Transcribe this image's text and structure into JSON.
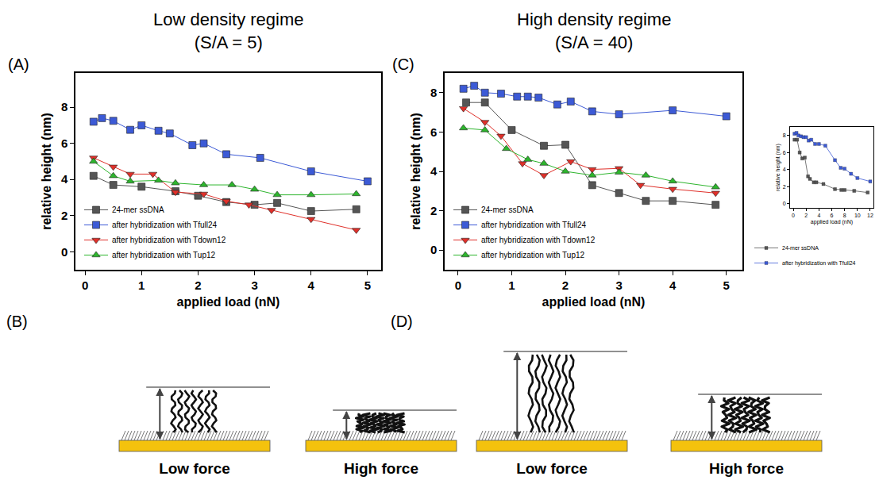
{
  "chart_data": [
    {
      "type": "line",
      "panel_label": "(A)",
      "title": "Low density regime (S/A = 5)",
      "x_label": "applied load (nN)",
      "y_label": "relative height (nm)",
      "xlim": [
        -0.17,
        5.24
      ],
      "ylim": [
        -1.0,
        9.9
      ],
      "xticks": [
        0,
        1,
        2,
        3,
        4,
        5
      ],
      "yticks": [
        0,
        2,
        4,
        6,
        8
      ],
      "grid": false,
      "legend": "lower left",
      "series": [
        {
          "name": "24-mer ssDNA",
          "color": "#555555",
          "marker": "square",
          "x": [
            0.15,
            0.5,
            1.0,
            1.6,
            2.0,
            2.5,
            3.0,
            3.4,
            4.0,
            4.8
          ],
          "values": [
            4.2,
            3.7,
            3.6,
            3.35,
            3.1,
            2.75,
            2.6,
            2.7,
            2.25,
            2.35
          ]
        },
        {
          "name": "after hybridization with Tfull24",
          "color": "#3c5ad6",
          "marker": "square",
          "x": [
            0.15,
            0.3,
            0.5,
            0.8,
            1.0,
            1.3,
            1.5,
            1.9,
            2.1,
            2.5,
            3.1,
            4.0,
            5.0
          ],
          "values": [
            7.2,
            7.4,
            7.25,
            6.75,
            7.0,
            6.7,
            6.55,
            5.9,
            6.0,
            5.4,
            5.2,
            4.45,
            3.9
          ]
        },
        {
          "name": "after hybridization with Tdown12",
          "color": "#e0302a",
          "marker": "triangle-down",
          "x": [
            0.15,
            0.5,
            0.8,
            1.2,
            1.6,
            2.1,
            2.5,
            2.9,
            3.3,
            4.0,
            4.8
          ],
          "values": [
            5.2,
            4.7,
            4.3,
            4.3,
            3.3,
            3.2,
            2.8,
            2.6,
            2.3,
            1.8,
            1.2
          ]
        },
        {
          "name": "after hybridization with Tup12",
          "color": "#2db52d",
          "marker": "triangle-up",
          "x": [
            0.15,
            0.5,
            0.8,
            1.3,
            1.6,
            2.1,
            2.6,
            3.0,
            3.4,
            4.0,
            4.8
          ],
          "values": [
            5.0,
            4.2,
            3.9,
            3.95,
            3.8,
            3.7,
            3.7,
            3.45,
            3.15,
            3.15,
            3.2
          ]
        }
      ]
    },
    {
      "type": "line",
      "panel_label": "(C)",
      "title": "High density regime (S/A = 40)",
      "x_label": "applied load (nN)",
      "y_label": "relative height (nm)",
      "xlim": [
        -0.25,
        5.3
      ],
      "ylim": [
        -1.0,
        9.0
      ],
      "xticks": [
        0,
        1,
        2,
        3,
        4,
        5
      ],
      "yticks": [
        0,
        2,
        4,
        6,
        8
      ],
      "grid": false,
      "legend": "lower left",
      "series": [
        {
          "name": "24-mer ssDNA",
          "color": "#555555",
          "marker": "square",
          "x": [
            0.15,
            0.5,
            1.0,
            1.6,
            2.0,
            2.5,
            3.0,
            3.5,
            4.0,
            4.8
          ],
          "values": [
            7.5,
            7.5,
            6.1,
            5.3,
            5.35,
            3.3,
            2.9,
            2.5,
            2.5,
            2.3
          ]
        },
        {
          "name": "after hybridization with Tfull24",
          "color": "#3c5ad6",
          "marker": "square",
          "x": [
            0.1,
            0.3,
            0.5,
            0.8,
            1.1,
            1.3,
            1.5,
            1.85,
            2.1,
            2.5,
            3.0,
            4.0,
            5.0
          ],
          "values": [
            8.2,
            8.35,
            8.0,
            7.95,
            7.8,
            7.8,
            7.75,
            7.4,
            7.55,
            7.05,
            6.9,
            7.1,
            6.8
          ]
        },
        {
          "name": "after hybridization with Tdown12",
          "color": "#e0302a",
          "marker": "triangle-down",
          "x": [
            0.1,
            0.5,
            0.8,
            1.2,
            1.6,
            2.1,
            2.5,
            3.0,
            3.4,
            4.0,
            4.8
          ],
          "values": [
            7.2,
            6.5,
            5.8,
            4.4,
            3.8,
            4.5,
            4.1,
            4.15,
            3.3,
            3.1,
            2.9
          ]
        },
        {
          "name": "after hybridization with Tup12",
          "color": "#2db52d",
          "marker": "triangle-up",
          "x": [
            0.1,
            0.5,
            0.9,
            1.3,
            1.6,
            2.0,
            2.5,
            3.0,
            3.5,
            4.0,
            4.8
          ],
          "values": [
            6.2,
            6.1,
            5.15,
            4.6,
            4.4,
            4.0,
            3.8,
            3.95,
            3.8,
            3.5,
            3.2
          ]
        }
      ]
    },
    {
      "type": "line",
      "x_label": "applied load (nN)",
      "y_label": "relative height (nm)",
      "xlim": [
        -0.5,
        12.5
      ],
      "ylim": [
        -0.5,
        9.0
      ],
      "xticks": [
        0,
        2,
        4,
        6,
        8,
        10,
        12
      ],
      "yticks": [
        0,
        2,
        4,
        6,
        8
      ],
      "grid": false,
      "legend": "bottom",
      "series": [
        {
          "name": "24-mer ssDNA",
          "color": "#555555",
          "marker": "square",
          "x": [
            0.2,
            0.6,
            1.0,
            1.4,
            1.8,
            2.3,
            2.6,
            3.2,
            3.6,
            4.7,
            6.5,
            7.5,
            8.0,
            9.5,
            11.6
          ],
          "values": [
            7.5,
            7.5,
            6.0,
            5.3,
            5.4,
            3.2,
            2.9,
            2.5,
            2.5,
            2.3,
            1.7,
            1.6,
            1.6,
            1.5,
            1.3
          ]
        },
        {
          "name": "after hybridization with Tfull24",
          "color": "#3c5ad6",
          "marker": "square",
          "x": [
            0.2,
            0.5,
            0.8,
            1.2,
            1.6,
            2.0,
            2.4,
            2.8,
            3.4,
            4.0,
            5.0,
            6.5,
            7.4,
            8.0,
            9.0,
            10.0,
            12.0
          ],
          "values": [
            8.2,
            8.3,
            8.0,
            7.9,
            7.8,
            7.8,
            7.4,
            7.5,
            7.0,
            7.0,
            6.8,
            5.1,
            4.2,
            4.1,
            3.5,
            3.0,
            2.6
          ]
        }
      ]
    }
  ],
  "schematics": [
    {
      "panel_label": "(B)",
      "labels": [
        "Low force",
        "High force"
      ]
    },
    {
      "panel_label": "(D)",
      "labels": [
        "Low force",
        "High force"
      ]
    }
  ]
}
